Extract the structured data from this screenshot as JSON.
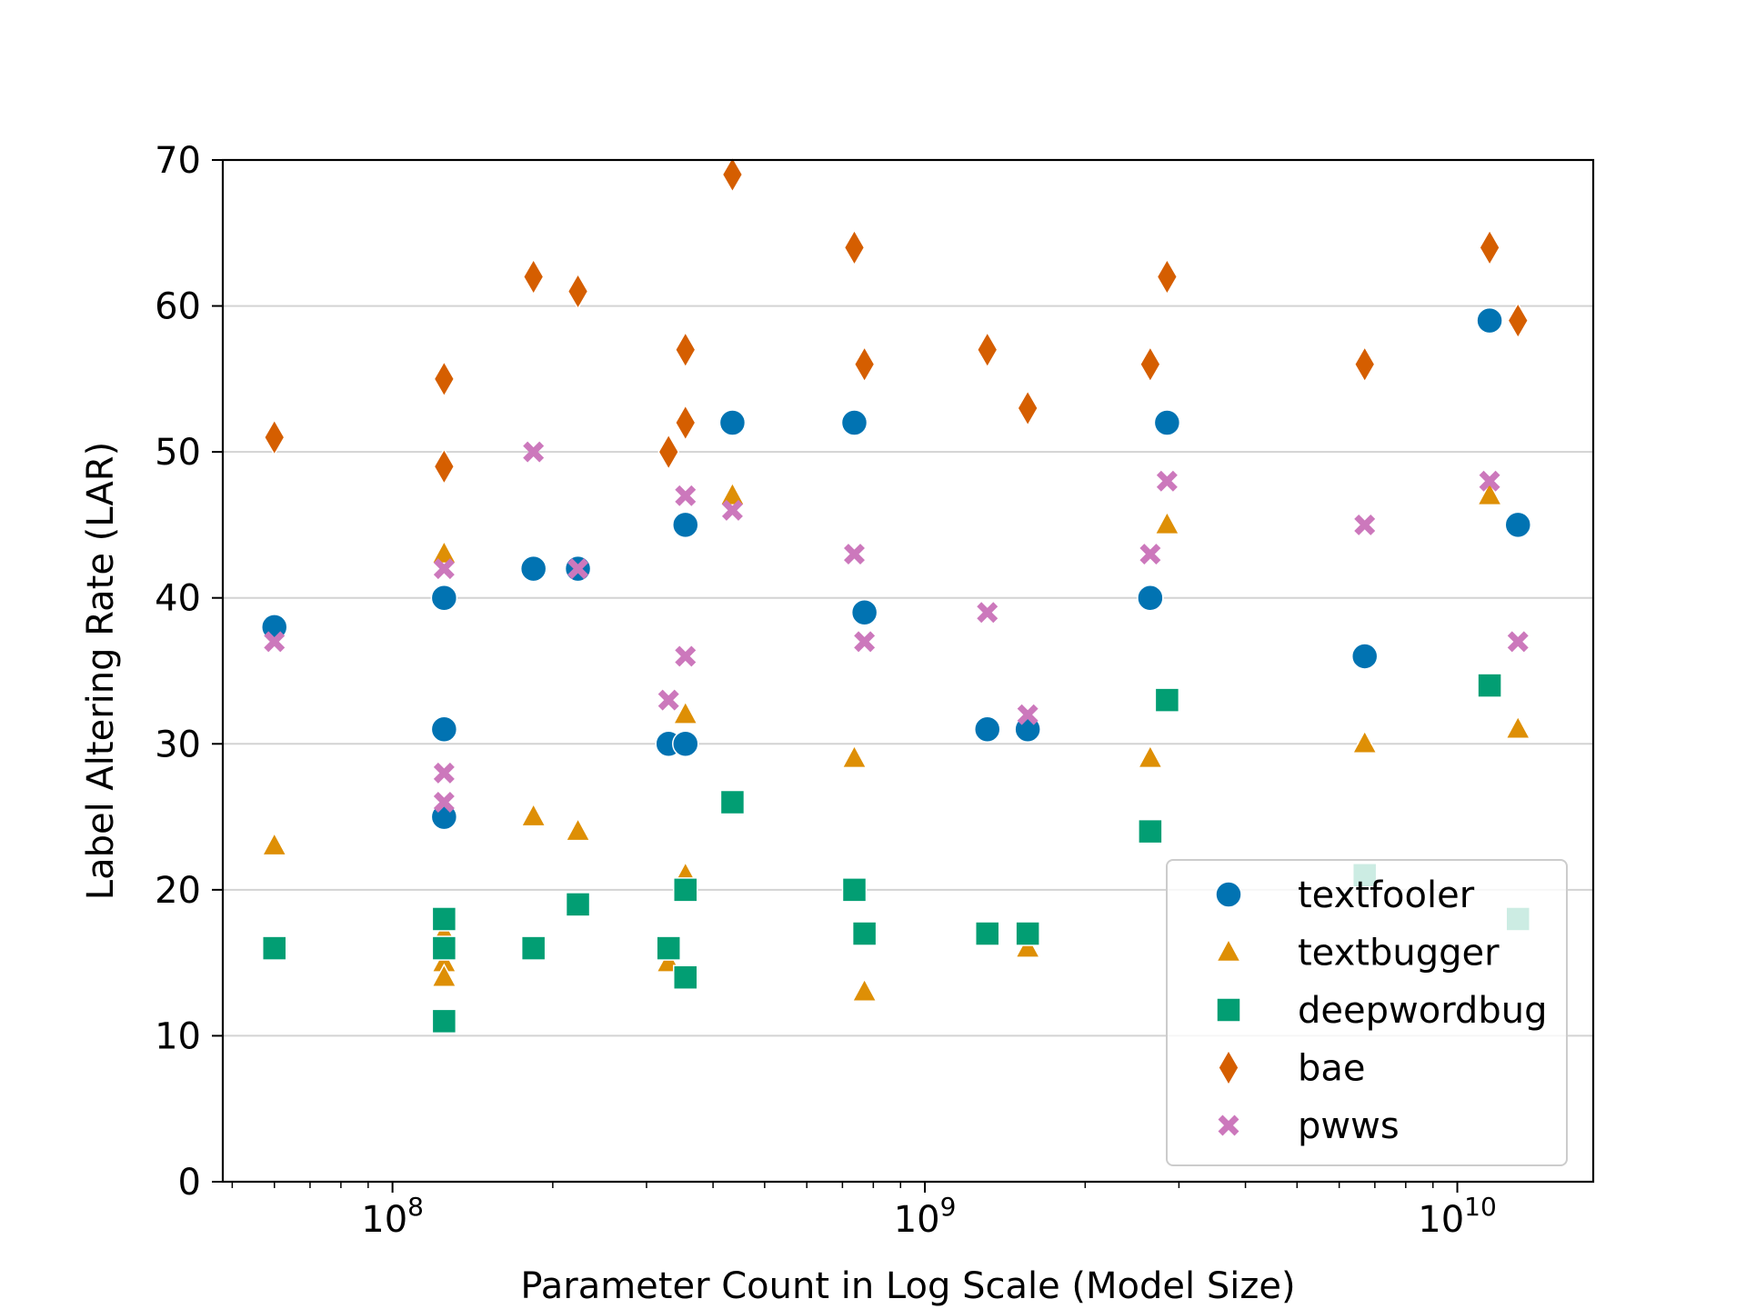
{
  "chart_data": {
    "type": "scatter",
    "title": "",
    "xlabel": "Parameter Count in Log Scale (Model Size)",
    "ylabel": "Label Altering Rate (LAR)",
    "xscale": "log",
    "xlim": [
      48000000,
      18000000000
    ],
    "ylim": [
      0,
      70
    ],
    "yticks": [
      0,
      10,
      20,
      30,
      40,
      50,
      60,
      70
    ],
    "xticks": [
      {
        "value": 100000000,
        "base": "10",
        "exp": "8"
      },
      {
        "value": 1000000000,
        "base": "10",
        "exp": "9"
      },
      {
        "value": 10000000000,
        "base": "10",
        "exp": "10"
      }
    ],
    "grid": "horizontal",
    "legend_position": "lower-right",
    "series": [
      {
        "name": "textfooler",
        "marker": "circle",
        "color": "#0173b2",
        "points": [
          {
            "x": 60000000,
            "y": 38
          },
          {
            "x": 125000000,
            "y": 40
          },
          {
            "x": 125000000,
            "y": 31
          },
          {
            "x": 125000000,
            "y": 25
          },
          {
            "x": 184000000,
            "y": 42
          },
          {
            "x": 223000000,
            "y": 42
          },
          {
            "x": 330000000,
            "y": 30
          },
          {
            "x": 355000000,
            "y": 30
          },
          {
            "x": 355000000,
            "y": 45
          },
          {
            "x": 435000000,
            "y": 52
          },
          {
            "x": 737000000,
            "y": 52
          },
          {
            "x": 770000000,
            "y": 39
          },
          {
            "x": 1310000000,
            "y": 31
          },
          {
            "x": 1560000000,
            "y": 31
          },
          {
            "x": 2650000000,
            "y": 40
          },
          {
            "x": 2850000000,
            "y": 52
          },
          {
            "x": 6700000000,
            "y": 36
          },
          {
            "x": 11500000000,
            "y": 59
          },
          {
            "x": 13000000000,
            "y": 45
          }
        ]
      },
      {
        "name": "textbugger",
        "marker": "triangle",
        "color": "#de8f05",
        "points": [
          {
            "x": 60000000,
            "y": 23
          },
          {
            "x": 125000000,
            "y": 43
          },
          {
            "x": 125000000,
            "y": 17
          },
          {
            "x": 125000000,
            "y": 15
          },
          {
            "x": 125000000,
            "y": 14
          },
          {
            "x": 184000000,
            "y": 25
          },
          {
            "x": 223000000,
            "y": 24
          },
          {
            "x": 330000000,
            "y": 15
          },
          {
            "x": 355000000,
            "y": 32
          },
          {
            "x": 355000000,
            "y": 21
          },
          {
            "x": 435000000,
            "y": 47
          },
          {
            "x": 737000000,
            "y": 29
          },
          {
            "x": 770000000,
            "y": 13
          },
          {
            "x": 1560000000,
            "y": 16
          },
          {
            "x": 2650000000,
            "y": 29
          },
          {
            "x": 2850000000,
            "y": 45
          },
          {
            "x": 6700000000,
            "y": 30
          },
          {
            "x": 11500000000,
            "y": 47
          },
          {
            "x": 13000000000,
            "y": 31
          }
        ]
      },
      {
        "name": "deepwordbug",
        "marker": "square",
        "color": "#029e73",
        "points": [
          {
            "x": 60000000,
            "y": 16
          },
          {
            "x": 125000000,
            "y": 18
          },
          {
            "x": 125000000,
            "y": 16
          },
          {
            "x": 125000000,
            "y": 11
          },
          {
            "x": 184000000,
            "y": 16
          },
          {
            "x": 223000000,
            "y": 19
          },
          {
            "x": 330000000,
            "y": 16
          },
          {
            "x": 355000000,
            "y": 20
          },
          {
            "x": 355000000,
            "y": 14
          },
          {
            "x": 435000000,
            "y": 26
          },
          {
            "x": 737000000,
            "y": 20
          },
          {
            "x": 770000000,
            "y": 17
          },
          {
            "x": 1310000000,
            "y": 17
          },
          {
            "x": 1560000000,
            "y": 17
          },
          {
            "x": 2650000000,
            "y": 24
          },
          {
            "x": 2850000000,
            "y": 33
          },
          {
            "x": 6700000000,
            "y": 21
          },
          {
            "x": 11500000000,
            "y": 34
          },
          {
            "x": 13000000000,
            "y": 18
          }
        ]
      },
      {
        "name": "bae",
        "marker": "diamond",
        "color": "#d55e00",
        "points": [
          {
            "x": 60000000,
            "y": 51
          },
          {
            "x": 125000000,
            "y": 55
          },
          {
            "x": 125000000,
            "y": 49
          },
          {
            "x": 184000000,
            "y": 62
          },
          {
            "x": 223000000,
            "y": 61
          },
          {
            "x": 330000000,
            "y": 50
          },
          {
            "x": 355000000,
            "y": 57
          },
          {
            "x": 355000000,
            "y": 52
          },
          {
            "x": 435000000,
            "y": 69
          },
          {
            "x": 737000000,
            "y": 64
          },
          {
            "x": 770000000,
            "y": 56
          },
          {
            "x": 1310000000,
            "y": 57
          },
          {
            "x": 1560000000,
            "y": 53
          },
          {
            "x": 2650000000,
            "y": 56
          },
          {
            "x": 2850000000,
            "y": 62
          },
          {
            "x": 6700000000,
            "y": 56
          },
          {
            "x": 11500000000,
            "y": 64
          },
          {
            "x": 13000000000,
            "y": 59
          }
        ]
      },
      {
        "name": "pwws",
        "marker": "x",
        "color": "#cc78bc",
        "points": [
          {
            "x": 60000000,
            "y": 37
          },
          {
            "x": 125000000,
            "y": 42
          },
          {
            "x": 125000000,
            "y": 28
          },
          {
            "x": 125000000,
            "y": 26
          },
          {
            "x": 184000000,
            "y": 50
          },
          {
            "x": 223000000,
            "y": 42
          },
          {
            "x": 330000000,
            "y": 33
          },
          {
            "x": 355000000,
            "y": 47
          },
          {
            "x": 355000000,
            "y": 36
          },
          {
            "x": 435000000,
            "y": 46
          },
          {
            "x": 737000000,
            "y": 43
          },
          {
            "x": 770000000,
            "y": 37
          },
          {
            "x": 1310000000,
            "y": 39
          },
          {
            "x": 1560000000,
            "y": 32
          },
          {
            "x": 2650000000,
            "y": 43
          },
          {
            "x": 2850000000,
            "y": 48
          },
          {
            "x": 6700000000,
            "y": 45
          },
          {
            "x": 11500000000,
            "y": 48
          },
          {
            "x": 13000000000,
            "y": 37
          }
        ]
      }
    ]
  }
}
